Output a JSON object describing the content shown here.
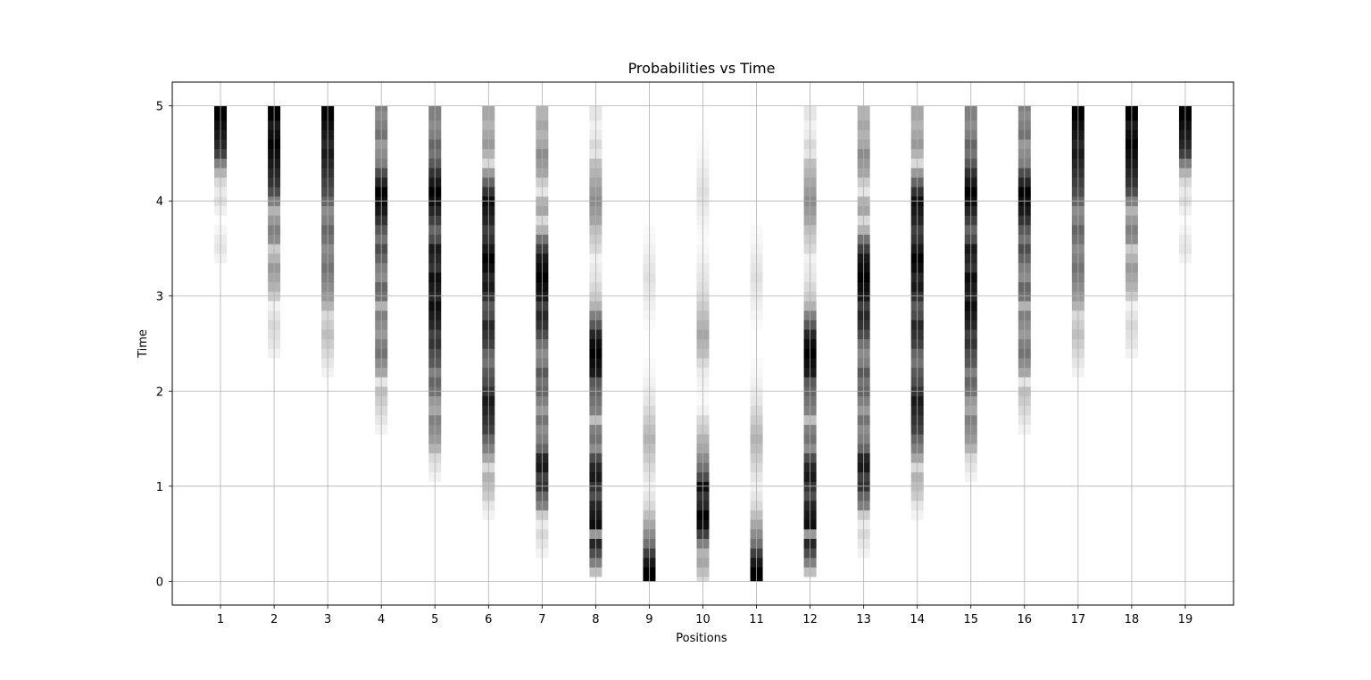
{
  "chart_data": {
    "type": "heatmap",
    "title": "Probabilities vs Time",
    "xlabel": "Positions",
    "ylabel": "Time",
    "x": [
      1,
      2,
      3,
      4,
      5,
      6,
      7,
      8,
      9,
      10,
      11,
      12,
      13,
      14,
      15,
      16,
      17,
      18,
      19
    ],
    "x_tick_labels": [
      "1",
      "2",
      "3",
      "4",
      "5",
      "6",
      "7",
      "8",
      "9",
      "10",
      "11",
      "12",
      "13",
      "14",
      "15",
      "16",
      "17",
      "18",
      "19"
    ],
    "y_tick_labels": [
      "0",
      "1",
      "2",
      "3",
      "4",
      "5"
    ],
    "y_ticks": [
      0,
      1,
      2,
      3,
      4,
      5
    ],
    "xlim": [
      0.1,
      19.9
    ],
    "ylim": [
      -0.25,
      5.25
    ],
    "grid": true,
    "colormap": "gray_r",
    "time_range": [
      0,
      5
    ],
    "time_step": 0.1,
    "probability_columns": [
      {
        "position": 1,
        "intensities": [
          0,
          0,
          0,
          0,
          0,
          0,
          0,
          0,
          0,
          0,
          0,
          0,
          0,
          0,
          0,
          0,
          0,
          0,
          0,
          0,
          0,
          0,
          0,
          0,
          0,
          0,
          0,
          0,
          0,
          0,
          0,
          0,
          0,
          0,
          0.05,
          0.1,
          0.08,
          0.04,
          0,
          0.06,
          0.12,
          0.08,
          0.15,
          0.3,
          0.5,
          0.75,
          0.85,
          0.9,
          0.95,
          1.0,
          1.0
        ]
      },
      {
        "position": 2,
        "intensities": [
          0,
          0,
          0,
          0,
          0,
          0,
          0,
          0,
          0,
          0,
          0,
          0,
          0,
          0,
          0,
          0,
          0,
          0,
          0,
          0,
          0,
          0,
          0,
          0,
          0.05,
          0.1,
          0.12,
          0.15,
          0.1,
          0.05,
          0.2,
          0.3,
          0.35,
          0.4,
          0.3,
          0.2,
          0.45,
          0.5,
          0.4,
          0.3,
          0.5,
          0.7,
          0.8,
          0.85,
          0.9,
          0.95,
          1.0,
          0.95,
          0.9,
          1.0,
          1.0
        ]
      },
      {
        "position": 3,
        "intensities": [
          0,
          0,
          0,
          0,
          0,
          0,
          0,
          0,
          0,
          0,
          0,
          0,
          0,
          0,
          0,
          0,
          0,
          0,
          0,
          0,
          0,
          0,
          0.05,
          0.1,
          0.15,
          0.2,
          0.25,
          0.2,
          0.15,
          0.3,
          0.4,
          0.45,
          0.5,
          0.55,
          0.5,
          0.45,
          0.55,
          0.6,
          0.5,
          0.45,
          0.6,
          0.7,
          0.75,
          0.8,
          0.85,
          0.9,
          0.85,
          0.9,
          0.95,
          1.0,
          1.0
        ]
      },
      {
        "position": 4,
        "intensities": [
          0,
          0,
          0,
          0,
          0,
          0,
          0,
          0,
          0,
          0,
          0,
          0,
          0,
          0,
          0,
          0,
          0.05,
          0.1,
          0.15,
          0.2,
          0.25,
          0.1,
          0.35,
          0.45,
          0.55,
          0.5,
          0.4,
          0.45,
          0.5,
          0.3,
          0.55,
          0.6,
          0.45,
          0.5,
          0.6,
          0.7,
          0.55,
          0.65,
          0.8,
          0.9,
          0.95,
          1.0,
          0.85,
          0.7,
          0.5,
          0.45,
          0.4,
          0.55,
          0.5,
          0.45,
          0.5
        ]
      },
      {
        "position": 5,
        "intensities": [
          0,
          0,
          0,
          0,
          0,
          0,
          0,
          0,
          0,
          0,
          0,
          0.05,
          0.1,
          0.15,
          0.3,
          0.4,
          0.45,
          0.5,
          0.35,
          0.4,
          0.55,
          0.6,
          0.5,
          0.65,
          0.7,
          0.8,
          0.75,
          0.85,
          0.9,
          0.95,
          0.85,
          0.9,
          0.95,
          0.8,
          0.85,
          0.9,
          0.7,
          0.6,
          0.75,
          0.85,
          0.95,
          1.0,
          0.9,
          0.8,
          0.65,
          0.55,
          0.6,
          0.5,
          0.45,
          0.5,
          0.5
        ]
      },
      {
        "position": 6,
        "intensities": [
          0,
          0,
          0,
          0,
          0,
          0,
          0,
          0.05,
          0.1,
          0.2,
          0.25,
          0.3,
          0.15,
          0.35,
          0.5,
          0.6,
          0.75,
          0.8,
          0.85,
          0.9,
          0.8,
          0.7,
          0.65,
          0.55,
          0.6,
          0.75,
          0.8,
          0.85,
          0.7,
          0.65,
          0.8,
          0.9,
          0.85,
          0.95,
          1.0,
          0.9,
          0.8,
          0.75,
          0.85,
          0.9,
          0.95,
          0.8,
          0.6,
          0.4,
          0.15,
          0.3,
          0.4,
          0.35,
          0.3,
          0.35,
          0.35
        ]
      },
      {
        "position": 7,
        "intensities": [
          0,
          0,
          0,
          0.05,
          0.1,
          0.15,
          0.08,
          0.2,
          0.5,
          0.6,
          0.8,
          0.75,
          0.9,
          0.85,
          0.6,
          0.5,
          0.45,
          0.55,
          0.4,
          0.5,
          0.6,
          0.55,
          0.65,
          0.5,
          0.45,
          0.55,
          0.7,
          0.8,
          0.85,
          0.75,
          0.9,
          0.95,
          1.0,
          0.95,
          0.9,
          0.75,
          0.55,
          0.3,
          0.15,
          0.35,
          0.3,
          0.1,
          0.2,
          0.35,
          0.4,
          0.45,
          0.35,
          0.3,
          0.35,
          0.3,
          0.3
        ]
      },
      {
        "position": 8,
        "intensities": [
          0,
          0.25,
          0.5,
          0.7,
          0.85,
          0.4,
          0.95,
          0.9,
          0.85,
          0.7,
          0.8,
          0.9,
          0.85,
          0.7,
          0.45,
          0.55,
          0.5,
          0.25,
          0.5,
          0.55,
          0.6,
          0.65,
          0.9,
          0.95,
          1.0,
          0.95,
          0.85,
          0.65,
          0.5,
          0.3,
          0.2,
          0.15,
          0.1,
          0.08,
          0.05,
          0.15,
          0.2,
          0.25,
          0.35,
          0.4,
          0.45,
          0.4,
          0.35,
          0.3,
          0.25,
          0.1,
          0.15,
          0.08,
          0.05,
          0.1,
          0.1
        ]
      },
      {
        "position": 9,
        "intensities": [
          1.0,
          1.0,
          0.9,
          0.75,
          0.55,
          0.45,
          0.35,
          0.25,
          0.15,
          0.1,
          0.05,
          0.1,
          0.15,
          0.2,
          0.25,
          0.3,
          0.25,
          0.2,
          0.15,
          0.1,
          0.08,
          0.05,
          0.03,
          0.02,
          0,
          0,
          0,
          0.02,
          0.04,
          0.06,
          0.08,
          0.1,
          0.12,
          0.1,
          0.08,
          0.05,
          0.03,
          0.02,
          0,
          0,
          0,
          0,
          0,
          0,
          0,
          0,
          0,
          0,
          0,
          0,
          0
        ]
      },
      {
        "position": 10,
        "intensities": [
          0.15,
          0.25,
          0.35,
          0.3,
          0.5,
          0.75,
          0.95,
          1.0,
          0.85,
          0.8,
          0.95,
          0.7,
          0.55,
          0.45,
          0.35,
          0.3,
          0.2,
          0.15,
          0.05,
          0.02,
          0.03,
          0.05,
          0.08,
          0.15,
          0.25,
          0.3,
          0.35,
          0.3,
          0.25,
          0.2,
          0.15,
          0.12,
          0.1,
          0.08,
          0.05,
          0.03,
          0.02,
          0.03,
          0.05,
          0.08,
          0.1,
          0.12,
          0.1,
          0.08,
          0.05,
          0.03,
          0.02,
          0.01,
          0,
          0,
          0
        ]
      },
      {
        "position": 11,
        "intensities": [
          1.0,
          1.0,
          0.9,
          0.75,
          0.55,
          0.45,
          0.35,
          0.25,
          0.15,
          0.1,
          0.05,
          0.1,
          0.15,
          0.2,
          0.25,
          0.3,
          0.25,
          0.2,
          0.15,
          0.1,
          0.08,
          0.05,
          0.03,
          0.02,
          0,
          0,
          0,
          0.02,
          0.04,
          0.06,
          0.08,
          0.1,
          0.12,
          0.1,
          0.08,
          0.05,
          0.03,
          0.02,
          0,
          0,
          0,
          0,
          0,
          0,
          0,
          0,
          0,
          0,
          0,
          0,
          0
        ]
      },
      {
        "position": 12,
        "intensities": [
          0,
          0.25,
          0.5,
          0.7,
          0.85,
          0.4,
          0.95,
          0.9,
          0.85,
          0.7,
          0.8,
          0.9,
          0.85,
          0.7,
          0.45,
          0.55,
          0.5,
          0.25,
          0.5,
          0.55,
          0.6,
          0.65,
          0.9,
          0.95,
          1.0,
          0.95,
          0.85,
          0.65,
          0.5,
          0.3,
          0.2,
          0.15,
          0.1,
          0.08,
          0.05,
          0.15,
          0.2,
          0.25,
          0.35,
          0.4,
          0.45,
          0.4,
          0.35,
          0.3,
          0.25,
          0.1,
          0.15,
          0.08,
          0.05,
          0.1,
          0.1
        ]
      },
      {
        "position": 13,
        "intensities": [
          0,
          0,
          0,
          0.05,
          0.1,
          0.15,
          0.08,
          0.2,
          0.5,
          0.6,
          0.8,
          0.75,
          0.9,
          0.85,
          0.6,
          0.5,
          0.45,
          0.55,
          0.4,
          0.5,
          0.6,
          0.55,
          0.65,
          0.5,
          0.45,
          0.55,
          0.7,
          0.8,
          0.85,
          0.75,
          0.9,
          0.95,
          1.0,
          0.95,
          0.9,
          0.75,
          0.55,
          0.3,
          0.15,
          0.35,
          0.3,
          0.1,
          0.2,
          0.35,
          0.4,
          0.45,
          0.35,
          0.3,
          0.35,
          0.3,
          0.3
        ]
      },
      {
        "position": 14,
        "intensities": [
          0,
          0,
          0,
          0,
          0,
          0,
          0,
          0.05,
          0.1,
          0.2,
          0.25,
          0.3,
          0.15,
          0.35,
          0.5,
          0.6,
          0.75,
          0.8,
          0.85,
          0.9,
          0.8,
          0.7,
          0.65,
          0.55,
          0.6,
          0.75,
          0.8,
          0.85,
          0.7,
          0.65,
          0.8,
          0.9,
          0.85,
          0.95,
          1.0,
          0.9,
          0.8,
          0.75,
          0.85,
          0.9,
          0.95,
          0.8,
          0.6,
          0.4,
          0.15,
          0.3,
          0.4,
          0.35,
          0.3,
          0.35,
          0.35
        ]
      },
      {
        "position": 15,
        "intensities": [
          0,
          0,
          0,
          0,
          0,
          0,
          0,
          0,
          0,
          0,
          0,
          0.05,
          0.1,
          0.15,
          0.3,
          0.4,
          0.45,
          0.5,
          0.35,
          0.4,
          0.55,
          0.6,
          0.5,
          0.65,
          0.7,
          0.8,
          0.75,
          0.85,
          0.9,
          0.95,
          0.85,
          0.9,
          0.95,
          0.8,
          0.85,
          0.9,
          0.7,
          0.6,
          0.75,
          0.85,
          0.95,
          1.0,
          0.9,
          0.8,
          0.65,
          0.55,
          0.6,
          0.5,
          0.45,
          0.5,
          0.5
        ]
      },
      {
        "position": 16,
        "intensities": [
          0,
          0,
          0,
          0,
          0,
          0,
          0,
          0,
          0,
          0,
          0,
          0,
          0,
          0,
          0,
          0,
          0.05,
          0.1,
          0.15,
          0.2,
          0.25,
          0.1,
          0.35,
          0.45,
          0.55,
          0.5,
          0.4,
          0.45,
          0.5,
          0.3,
          0.55,
          0.6,
          0.45,
          0.5,
          0.6,
          0.7,
          0.55,
          0.65,
          0.8,
          0.9,
          0.95,
          1.0,
          0.85,
          0.7,
          0.5,
          0.45,
          0.4,
          0.55,
          0.5,
          0.45,
          0.5
        ]
      },
      {
        "position": 17,
        "intensities": [
          0,
          0,
          0,
          0,
          0,
          0,
          0,
          0,
          0,
          0,
          0,
          0,
          0,
          0,
          0,
          0,
          0,
          0,
          0,
          0,
          0,
          0,
          0.05,
          0.1,
          0.15,
          0.2,
          0.25,
          0.2,
          0.15,
          0.3,
          0.4,
          0.45,
          0.5,
          0.55,
          0.5,
          0.45,
          0.55,
          0.6,
          0.5,
          0.45,
          0.6,
          0.7,
          0.75,
          0.8,
          0.85,
          0.9,
          0.85,
          0.9,
          0.95,
          1.0,
          1.0
        ]
      },
      {
        "position": 18,
        "intensities": [
          0,
          0,
          0,
          0,
          0,
          0,
          0,
          0,
          0,
          0,
          0,
          0,
          0,
          0,
          0,
          0,
          0,
          0,
          0,
          0,
          0,
          0,
          0,
          0,
          0.05,
          0.1,
          0.12,
          0.15,
          0.1,
          0.05,
          0.2,
          0.3,
          0.35,
          0.4,
          0.3,
          0.2,
          0.45,
          0.5,
          0.4,
          0.3,
          0.5,
          0.7,
          0.8,
          0.85,
          0.9,
          0.95,
          1.0,
          0.95,
          0.9,
          1.0,
          1.0
        ]
      },
      {
        "position": 19,
        "intensities": [
          0,
          0,
          0,
          0,
          0,
          0,
          0,
          0,
          0,
          0,
          0,
          0,
          0,
          0,
          0,
          0,
          0,
          0,
          0,
          0,
          0,
          0,
          0,
          0,
          0,
          0,
          0,
          0,
          0,
          0,
          0,
          0,
          0,
          0,
          0.05,
          0.1,
          0.08,
          0.04,
          0,
          0.06,
          0.12,
          0.08,
          0.15,
          0.3,
          0.5,
          0.75,
          0.85,
          0.9,
          0.95,
          1.0,
          1.0
        ]
      }
    ]
  }
}
